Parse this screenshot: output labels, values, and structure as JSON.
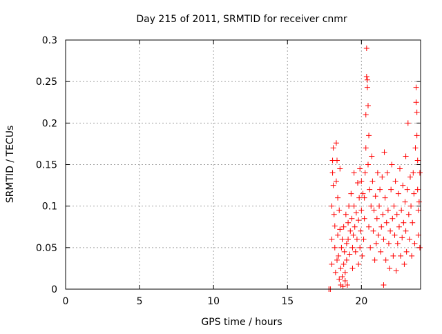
{
  "chart_data": {
    "type": "scatter",
    "title": "Day 215 of 2011, SRMTID for receiver cnmr",
    "xlabel": "GPS time / hours",
    "ylabel": "SRMTID / TECUs",
    "xlim": [
      0,
      24
    ],
    "ylim": [
      0,
      0.3
    ],
    "xticks": [
      0,
      5,
      10,
      15,
      20
    ],
    "xtick_labels": [
      "0",
      "5",
      "10",
      "15",
      "20"
    ],
    "yticks": [
      0,
      0.05,
      0.1,
      0.15,
      0.2,
      0.25,
      0.3
    ],
    "ytick_labels": [
      "0",
      "0.05",
      "0.1",
      "0.15",
      "0.2",
      "0.25",
      "0.3"
    ],
    "grid": true,
    "marker": "plus",
    "series": [
      {
        "name": "SRMTID",
        "color": "#ff0000",
        "points": [
          [
            17.8,
            0.0
          ],
          [
            17.9,
            0.0
          ],
          [
            18.0,
            0.03
          ],
          [
            18.0,
            0.06
          ],
          [
            18.0,
            0.1
          ],
          [
            18.05,
            0.14
          ],
          [
            18.05,
            0.155
          ],
          [
            18.1,
            0.17
          ],
          [
            18.1,
            0.125
          ],
          [
            18.15,
            0.09
          ],
          [
            18.2,
            0.076
          ],
          [
            18.2,
            0.05
          ],
          [
            18.25,
            0.02
          ],
          [
            18.3,
            0.176
          ],
          [
            18.3,
            0.13
          ],
          [
            18.35,
            0.155
          ],
          [
            18.35,
            0.035
          ],
          [
            18.4,
            0.11
          ],
          [
            18.4,
            0.065
          ],
          [
            18.45,
            0.04
          ],
          [
            18.5,
            0.012
          ],
          [
            18.5,
            0.095
          ],
          [
            18.55,
            0.145
          ],
          [
            18.55,
            0.072
          ],
          [
            18.6,
            0.025
          ],
          [
            18.6,
            0.005
          ],
          [
            18.65,
            0.05
          ],
          [
            18.7,
            0.06
          ],
          [
            18.7,
            0.015
          ],
          [
            18.75,
            0.003
          ],
          [
            18.8,
            0.03
          ],
          [
            18.8,
            0.075
          ],
          [
            18.85,
            0.045
          ],
          [
            18.9,
            0.01
          ],
          [
            18.9,
            0.02
          ],
          [
            18.95,
            0.09
          ],
          [
            19.0,
            0.055
          ],
          [
            19.0,
            0.035
          ],
          [
            19.05,
            0.005
          ],
          [
            19.1,
            0.06
          ],
          [
            19.1,
            0.08
          ],
          [
            19.15,
            0.1
          ],
          [
            19.2,
            0.042
          ],
          [
            19.25,
            0.07
          ],
          [
            19.3,
            0.115
          ],
          [
            19.35,
            0.085
          ],
          [
            19.4,
            0.05
          ],
          [
            19.4,
            0.025
          ],
          [
            19.45,
            0.065
          ],
          [
            19.5,
            0.1
          ],
          [
            19.5,
            0.14
          ],
          [
            19.55,
            0.075
          ],
          [
            19.6,
            0.045
          ],
          [
            19.65,
            0.092
          ],
          [
            19.7,
            0.06
          ],
          [
            19.75,
            0.128
          ],
          [
            19.8,
            0.03
          ],
          [
            19.8,
            0.083
          ],
          [
            19.85,
            0.11
          ],
          [
            19.9,
            0.05
          ],
          [
            19.9,
            0.145
          ],
          [
            19.95,
            0.07
          ],
          [
            20.0,
            0.13
          ],
          [
            20.0,
            0.095
          ],
          [
            20.05,
            0.04
          ],
          [
            20.1,
            0.115
          ],
          [
            20.15,
            0.06
          ],
          [
            20.2,
            0.085
          ],
          [
            20.2,
            0.11
          ],
          [
            20.25,
            0.14
          ],
          [
            20.3,
            0.21
          ],
          [
            20.3,
            0.17
          ],
          [
            20.35,
            0.29
          ],
          [
            20.35,
            0.256
          ],
          [
            20.4,
            0.252
          ],
          [
            20.4,
            0.243
          ],
          [
            20.45,
            0.221
          ],
          [
            20.45,
            0.15
          ],
          [
            20.5,
            0.185
          ],
          [
            20.5,
            0.075
          ],
          [
            20.55,
            0.12
          ],
          [
            20.6,
            0.05
          ],
          [
            20.65,
            0.1
          ],
          [
            20.7,
            0.16
          ],
          [
            20.75,
            0.13
          ],
          [
            20.8,
            0.07
          ],
          [
            20.85,
            0.095
          ],
          [
            20.9,
            0.035
          ],
          [
            20.95,
            0.112
          ],
          [
            21.0,
            0.055
          ],
          [
            21.05,
            0.085
          ],
          [
            21.1,
            0.14
          ],
          [
            21.15,
            0.065
          ],
          [
            21.2,
            0.1
          ],
          [
            21.25,
            0.12
          ],
          [
            21.3,
            0.045
          ],
          [
            21.35,
            0.075
          ],
          [
            21.4,
            0.135
          ],
          [
            21.45,
            0.09
          ],
          [
            21.5,
            0.005
          ],
          [
            21.5,
            0.06
          ],
          [
            21.55,
            0.165
          ],
          [
            21.6,
            0.11
          ],
          [
            21.65,
            0.035
          ],
          [
            21.7,
            0.08
          ],
          [
            21.75,
            0.14
          ],
          [
            21.8,
            0.095
          ],
          [
            21.85,
            0.055
          ],
          [
            21.9,
            0.025
          ],
          [
            21.95,
            0.07
          ],
          [
            22.0,
            0.12
          ],
          [
            22.05,
            0.15
          ],
          [
            22.1,
            0.085
          ],
          [
            22.15,
            0.04
          ],
          [
            22.2,
            0.1
          ],
          [
            22.25,
            0.065
          ],
          [
            22.3,
            0.13
          ],
          [
            22.35,
            0.022
          ],
          [
            22.4,
            0.09
          ],
          [
            22.45,
            0.055
          ],
          [
            22.5,
            0.115
          ],
          [
            22.55,
            0.075
          ],
          [
            22.6,
            0.145
          ],
          [
            22.65,
            0.04
          ],
          [
            22.7,
            0.095
          ],
          [
            22.75,
            0.062
          ],
          [
            22.8,
            0.125
          ],
          [
            22.85,
            0.08
          ],
          [
            22.9,
            0.03
          ],
          [
            22.95,
            0.105
          ],
          [
            23.0,
            0.16
          ],
          [
            23.0,
            0.07
          ],
          [
            23.05,
            0.045
          ],
          [
            23.1,
            0.12
          ],
          [
            23.15,
            0.2
          ],
          [
            23.2,
            0.09
          ],
          [
            23.25,
            0.06
          ],
          [
            23.3,
            0.135
          ],
          [
            23.35,
            0.1
          ],
          [
            23.4,
            0.04
          ],
          [
            23.45,
            0.08
          ],
          [
            23.5,
            0.14
          ],
          [
            23.55,
            0.115
          ],
          [
            23.6,
            0.055
          ],
          [
            23.65,
            0.17
          ],
          [
            23.7,
            0.243
          ],
          [
            23.7,
            0.225
          ],
          [
            23.75,
            0.213
          ],
          [
            23.75,
            0.185
          ],
          [
            23.8,
            0.155
          ],
          [
            23.8,
            0.12
          ],
          [
            23.85,
            0.095
          ],
          [
            23.85,
            0.065
          ],
          [
            23.9,
            0.105
          ],
          [
            23.95,
            0.05
          ],
          [
            23.95,
            0.14
          ]
        ]
      }
    ]
  }
}
